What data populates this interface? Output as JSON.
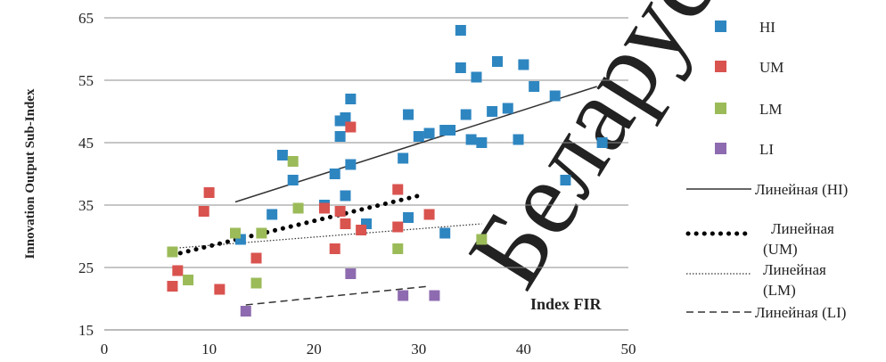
{
  "chart_data": {
    "type": "scatter",
    "ylabel": "Innovation Output Sub-Index",
    "annotation": "Index FIR",
    "xlim": [
      0,
      50
    ],
    "ylim": [
      15,
      65
    ],
    "x_ticks": [
      0,
      10,
      20,
      30,
      40,
      50
    ],
    "y_ticks": [
      15,
      25,
      35,
      45,
      55,
      65
    ],
    "grid": "horizontal",
    "legend_position": "right",
    "series": [
      {
        "name": "HI",
        "color": "#2E86C1",
        "points": [
          [
            13,
            29.5
          ],
          [
            16,
            33.5
          ],
          [
            17,
            43
          ],
          [
            18,
            39
          ],
          [
            21,
            35
          ],
          [
            22,
            40
          ],
          [
            22.5,
            48.5
          ],
          [
            22.5,
            46
          ],
          [
            23,
            49
          ],
          [
            23,
            36.5
          ],
          [
            23.5,
            52
          ],
          [
            23.5,
            41.5
          ],
          [
            25,
            32
          ],
          [
            28.5,
            42.5
          ],
          [
            29,
            33
          ],
          [
            29,
            49.5
          ],
          [
            30,
            46
          ],
          [
            31,
            46.5
          ],
          [
            32.5,
            47
          ],
          [
            33,
            47
          ],
          [
            32.5,
            30.5
          ],
          [
            34,
            57
          ],
          [
            34,
            63
          ],
          [
            34.5,
            49.5
          ],
          [
            35,
            45.5
          ],
          [
            35.5,
            55.5
          ],
          [
            36,
            45
          ],
          [
            37,
            50
          ],
          [
            37.5,
            58
          ],
          [
            38.5,
            50.5
          ],
          [
            39.5,
            45.5
          ],
          [
            40,
            57.5
          ],
          [
            41,
            54
          ],
          [
            43,
            52.5
          ],
          [
            44,
            39
          ],
          [
            47.5,
            45
          ]
        ]
      },
      {
        "name": "UM",
        "color": "#D9534F",
        "points": [
          [
            6.5,
            22
          ],
          [
            7,
            24.5
          ],
          [
            9.5,
            34
          ],
          [
            10,
            37
          ],
          [
            11,
            21.5
          ],
          [
            14.5,
            26.5
          ],
          [
            21,
            34.5
          ],
          [
            22,
            28
          ],
          [
            22.5,
            34
          ],
          [
            23,
            32
          ],
          [
            23.5,
            47.5
          ],
          [
            24.5,
            31
          ],
          [
            28,
            31.5
          ],
          [
            28,
            37.5
          ],
          [
            31,
            33.5
          ]
        ]
      },
      {
        "name": "LM",
        "color": "#9BBB59",
        "points": [
          [
            6.5,
            27.5
          ],
          [
            8,
            23
          ],
          [
            12.5,
            30.5
          ],
          [
            14.5,
            22.5
          ],
          [
            15,
            30.5
          ],
          [
            18,
            42
          ],
          [
            18.5,
            34.5
          ],
          [
            28,
            28
          ],
          [
            36,
            29.5
          ]
        ]
      },
      {
        "name": "LI",
        "color": "#8E6BB0",
        "points": [
          [
            13.5,
            18
          ],
          [
            23.5,
            24
          ],
          [
            28.5,
            20.5
          ],
          [
            31.5,
            20.5
          ]
        ]
      }
    ],
    "trendlines": [
      {
        "name": "Линейная  (HI)",
        "style": "solid",
        "x": [
          12.5,
          47
        ],
        "y": [
          35.5,
          54
        ]
      },
      {
        "name": "Линейная  (UM)",
        "style": "dots",
        "x": [
          6.5,
          30
        ],
        "y": [
          27,
          36.5
        ]
      },
      {
        "name": "Линейная  (LM)",
        "style": "dotted",
        "x": [
          6,
          36
        ],
        "y": [
          28,
          32
        ]
      },
      {
        "name": "Линейная  (LI)",
        "style": "dashed",
        "x": [
          13.5,
          31
        ],
        "y": [
          19,
          22
        ]
      }
    ],
    "legend_labels": {
      "HI": "HI",
      "UM": "UM",
      "LM": "LM",
      "LI": "LI",
      "trend_HI": "Линейная  (HI)",
      "trend_UM_1": "Линейная",
      "trend_UM_2": "(UM)",
      "trend_LM_1": "Линейная",
      "trend_LM_2": "(LM)",
      "trend_LI": "Линейная  (LI)"
    }
  },
  "watermark": "Беларуск"
}
